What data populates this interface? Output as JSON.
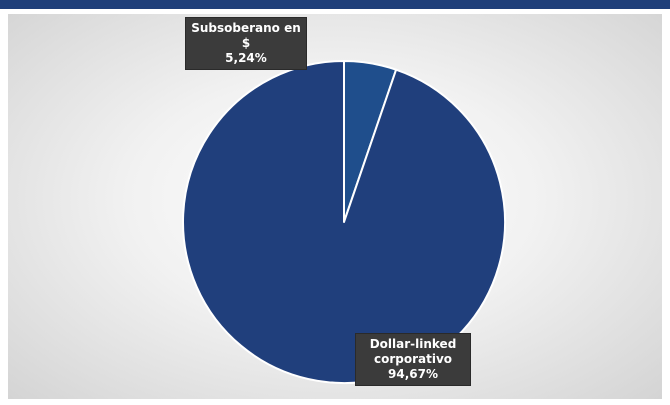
{
  "chart_data": {
    "type": "pie",
    "title": "",
    "slices": [
      {
        "label_line1": "Subsoberano en",
        "label_line2": "$",
        "value_label": "5,24%",
        "value": 5.24,
        "color": "#1f4e8c"
      },
      {
        "label_line1": "Dollar-linked",
        "label_line2": "corporativo",
        "value_label": "94,67%",
        "value": 94.67,
        "color": "#203f7c"
      }
    ],
    "legend": "none",
    "data_labels": "callout"
  }
}
